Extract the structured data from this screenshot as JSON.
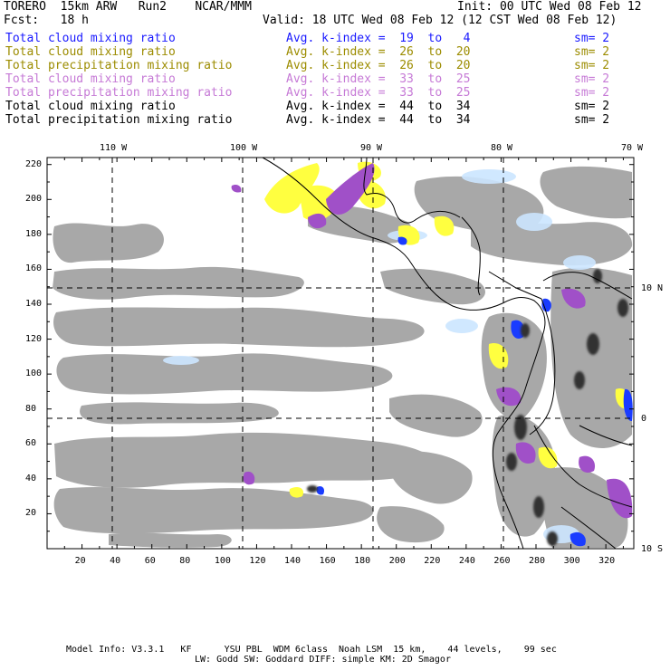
{
  "header": {
    "model": "TORERO  15km ARW   Run2    NCAR/MMM",
    "init": "Init: 00 UTC Wed 08 Feb 12",
    "fcst": "Fcst:   18 h",
    "valid": "Valid: 18 UTC Wed 08 Feb 12 (12 CST Wed 08 Feb 12)"
  },
  "legend": [
    {
      "field": "Total cloud mixing ratio",
      "kidx": "Avg. k-index =  19  to   4",
      "sm": "sm= 2",
      "color": "#1a1aff"
    },
    {
      "field": "Total cloud mixing ratio",
      "kidx": "Avg. k-index =  26  to  20",
      "sm": "sm= 2",
      "color": "#9c8c00"
    },
    {
      "field": "Total precipitation mixing ratio",
      "kidx": "Avg. k-index =  26  to  20",
      "sm": "sm= 2",
      "color": "#9c8c00"
    },
    {
      "field": "Total cloud mixing ratio",
      "kidx": "Avg. k-index =  33  to  25",
      "sm": "sm= 2",
      "color": "#c67ad6"
    },
    {
      "field": "Total precipitation mixing ratio",
      "kidx": "Avg. k-index =  33  to  25",
      "sm": "sm= 2",
      "color": "#c67ad6"
    },
    {
      "field": "Total cloud mixing ratio",
      "kidx": "Avg. k-index =  44  to  34",
      "sm": "sm= 2",
      "color": "#000000"
    },
    {
      "field": "Total precipitation mixing ratio",
      "kidx": "Avg. k-index =  44  to  34",
      "sm": "sm= 2",
      "color": "#000000"
    }
  ],
  "axes": {
    "lon_labels": [
      "110 W",
      "100 W",
      "90 W",
      "80 W",
      "70 W"
    ],
    "lat_labels": [
      "10 N",
      "0",
      "10 S"
    ],
    "x_ticks": [
      "20",
      "40",
      "60",
      "80",
      "100",
      "120",
      "140",
      "160",
      "180",
      "200",
      "220",
      "240",
      "260",
      "280",
      "300",
      "320"
    ],
    "y_ticks": [
      "220",
      "200",
      "180",
      "160",
      "140",
      "120",
      "100",
      "80",
      "60",
      "40",
      "20"
    ]
  },
  "colors": {
    "cloud_gray": "#a8a8a8",
    "light_blue": "#cce6ff",
    "blue": "#1a3cff",
    "yellow": "#ffff40",
    "purple": "#a050c8",
    "dark": "#303030"
  },
  "footer": {
    "line1": "Model Info: V3.3.1   KF      YSU PBL  WDM 6class  Noah LSM  15 km,    44 levels,    99 sec",
    "line2": "LW: Godd SW: Goddard DIFF: simple KM: 2D Smagor"
  }
}
